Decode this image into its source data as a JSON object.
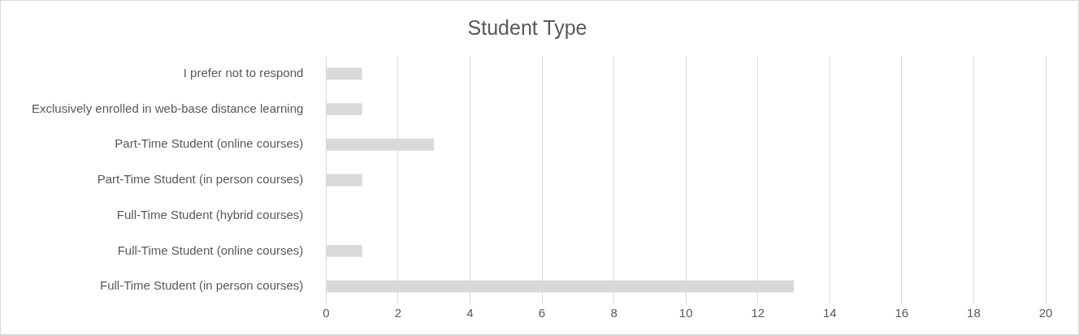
{
  "chart_data": {
    "type": "bar",
    "orientation": "horizontal",
    "title": "Student Type",
    "categories": [
      "I prefer not to respond",
      "Exclusively enrolled in web-base distance learning",
      "Part-Time Student (online courses)",
      "Part-Time Student (in person courses)",
      "Full-Time Student (hybrid courses)",
      "Full-Time Student (online courses)",
      "Full-Time Student (in person courses)"
    ],
    "values": [
      1,
      1,
      3,
      1,
      0,
      1,
      13
    ],
    "color": "#d9d9d9",
    "xlim": [
      0,
      20
    ],
    "xticks": [
      0,
      2,
      4,
      6,
      8,
      10,
      12,
      14,
      16,
      18,
      20
    ],
    "grid": "x",
    "legend": false
  }
}
